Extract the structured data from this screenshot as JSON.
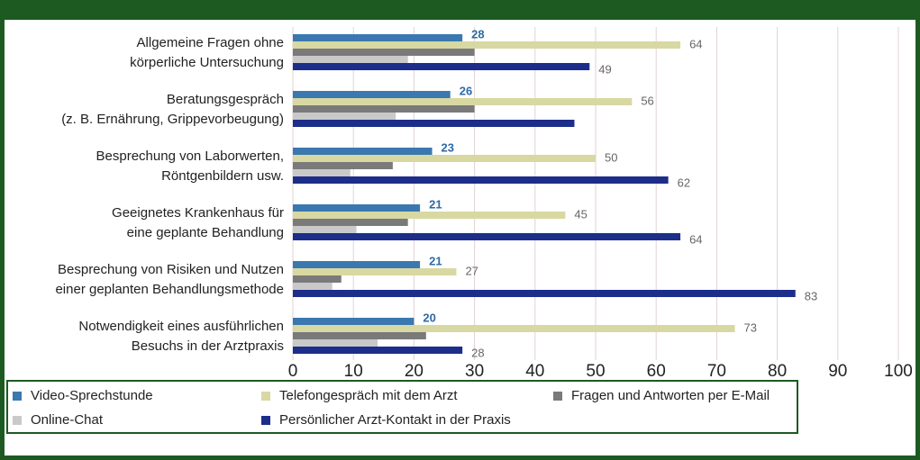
{
  "chart_data": {
    "type": "hbar",
    "categories": [
      [
        "Allgemeine Fragen ohne",
        "körperliche Untersuchung"
      ],
      [
        "Beratungsgespräch",
        "(z. B. Ernährung, Grippevorbeugung)"
      ],
      [
        "Besprechung von Laborwerten,",
        "Röntgenbildern usw."
      ],
      [
        "Geeignetes Krankenhaus für",
        "eine geplante Behandlung"
      ],
      [
        "Besprechung von Risiken und Nutzen",
        "einer geplanten Behandlungsmethode"
      ],
      [
        "Notwendigkeit eines ausführlichen",
        "Besuchs in der Arztpraxis"
      ]
    ],
    "series": [
      {
        "name": "Video-Sprechstunde",
        "color": "#3b78b0",
        "label_color": "#2e6aa6",
        "values": [
          28,
          26,
          23,
          21,
          21,
          20
        ],
        "value_labels": [
          "28",
          "26",
          "23",
          "21",
          "21",
          "20"
        ]
      },
      {
        "name": "Telefongespräch mit dem Arzt",
        "color": "#d8d8a2",
        "label_color": "#666666",
        "values": [
          64,
          56,
          50,
          45,
          27,
          73
        ],
        "value_labels": [
          "64",
          "56",
          "50",
          "45",
          "27",
          "73"
        ]
      },
      {
        "name": "Fragen und Antworten per E-Mail",
        "color": "#7a7a7a",
        "values": [
          30,
          30,
          16.5,
          19,
          8,
          22
        ]
      },
      {
        "name": "Online-Chat",
        "color": "#c9c9c9",
        "values": [
          19,
          17,
          9.5,
          10.5,
          6.5,
          14
        ]
      },
      {
        "name": "Persönlicher Arzt-Kontakt in der Praxis",
        "color": "#1c2e8a",
        "label_color": "#666666",
        "values": [
          49,
          46.5,
          62,
          64,
          83,
          28
        ],
        "value_labels": [
          "49",
          null,
          "62",
          "64",
          "83",
          "28"
        ]
      }
    ],
    "xlim": [
      0,
      100
    ],
    "xticks": [
      0,
      10,
      20,
      30,
      40,
      50,
      60,
      70,
      80,
      90,
      100
    ],
    "grid": true
  }
}
